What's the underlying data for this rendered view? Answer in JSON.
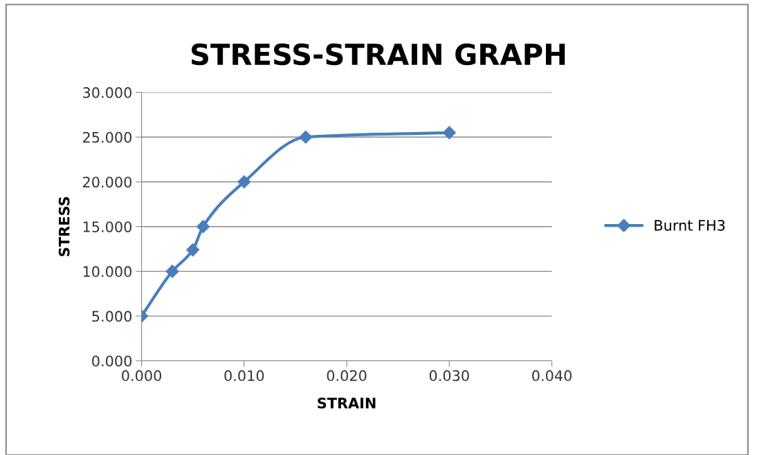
{
  "chart_data": {
    "type": "line",
    "title": "STRESS-STRAIN GRAPH",
    "xlabel": "STRAIN",
    "ylabel": "STRESS",
    "x": [
      0.0,
      0.003,
      0.005,
      0.006,
      0.01,
      0.016,
      0.03
    ],
    "series": [
      {
        "name": "Burnt FH3",
        "color": "#4a7ebb",
        "values": [
          5.0,
          10.0,
          12.4,
          15.0,
          20.0,
          25.0,
          25.5
        ]
      }
    ],
    "xlim": [
      0,
      0.04
    ],
    "ylim": [
      0,
      30
    ],
    "xticks": [
      {
        "value": 0,
        "label": "0.000"
      },
      {
        "value": 0.01,
        "label": "0.010"
      },
      {
        "value": 0.02,
        "label": "0.020"
      },
      {
        "value": 0.03,
        "label": "0.030"
      },
      {
        "value": 0.04,
        "label": "0.040"
      }
    ],
    "yticks": [
      {
        "value": 0,
        "label": "0.000"
      },
      {
        "value": 5,
        "label": "5.000"
      },
      {
        "value": 10,
        "label": "10.000"
      },
      {
        "value": 15,
        "label": "15.000"
      },
      {
        "value": 20,
        "label": "20.000"
      },
      {
        "value": 25,
        "label": "25.000"
      },
      {
        "value": 30,
        "label": "30.000"
      }
    ],
    "grid": "y",
    "legend": "right",
    "marker": "diamond",
    "line_style": "solid"
  }
}
